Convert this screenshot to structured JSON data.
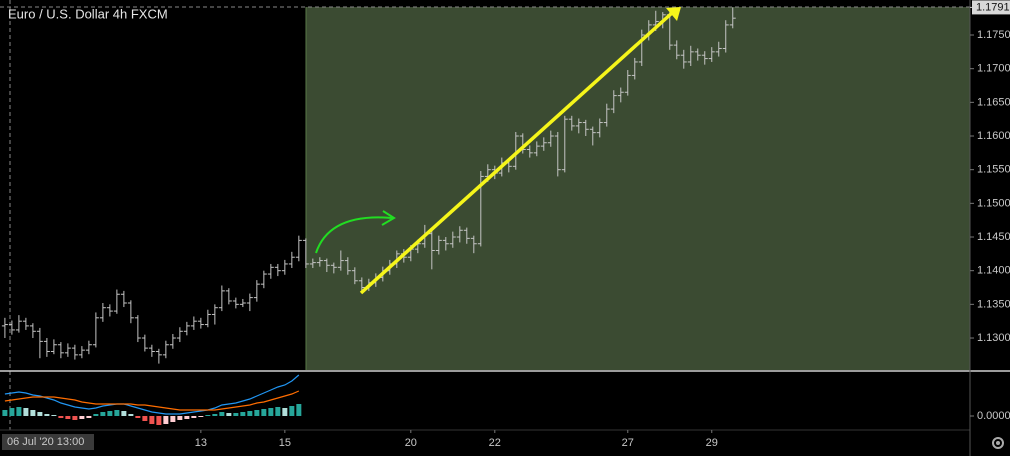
{
  "chart_data": [
    {
      "type": "ohlc",
      "title": "Euro / U.S. Dollar  4h  FXCM",
      "color": "#c4c4c4",
      "xlim": [
        -0.7,
        137.9
      ],
      "xticks": [
        {
          "value": 28,
          "label": "13"
        },
        {
          "value": 40,
          "label": "15"
        },
        {
          "value": 58,
          "label": "20"
        },
        {
          "value": 70,
          "label": "22"
        },
        {
          "value": 89,
          "label": "27"
        },
        {
          "value": 101,
          "label": "29"
        }
      ],
      "crosshair_label": "06 Jul '20  13:00",
      "ylim": [
        1.12525,
        1.1802
      ],
      "yticks": [
        {
          "value": 1.13,
          "label": "1.1300"
        },
        {
          "value": 1.135,
          "label": "1.1350"
        },
        {
          "value": 1.14,
          "label": "1.1400"
        },
        {
          "value": 1.145,
          "label": "1.1450"
        },
        {
          "value": 1.15,
          "label": "1.1500"
        },
        {
          "value": 1.155,
          "label": "1.1550"
        },
        {
          "value": 1.16,
          "label": "1.1600"
        },
        {
          "value": 1.165,
          "label": "1.1650"
        },
        {
          "value": 1.17,
          "label": "1.1700"
        },
        {
          "value": 1.175,
          "label": "1.1750"
        }
      ],
      "last_price": {
        "value": 1.1791,
        "label": "1.1791"
      },
      "values": [
        [
          1.1318,
          1.133,
          1.13,
          1.132
        ],
        [
          1.132,
          1.1326,
          1.1305,
          1.1312
        ],
        [
          1.1312,
          1.1334,
          1.1308,
          1.1325
        ],
        [
          1.1325,
          1.133,
          1.1312,
          1.1318
        ],
        [
          1.1318,
          1.1322,
          1.13,
          1.131
        ],
        [
          1.131,
          1.1315,
          1.127,
          1.1295
        ],
        [
          1.1295,
          1.13,
          1.1272,
          1.128
        ],
        [
          1.128,
          1.1298,
          1.1276,
          1.129
        ],
        [
          1.129,
          1.1294,
          1.127,
          1.1278
        ],
        [
          1.1278,
          1.1292,
          1.1272,
          1.1285
        ],
        [
          1.1285,
          1.129,
          1.1268,
          1.1275
        ],
        [
          1.1275,
          1.1288,
          1.127,
          1.1282
        ],
        [
          1.1282,
          1.1296,
          1.1276,
          1.129
        ],
        [
          1.129,
          1.1338,
          1.1286,
          1.133
        ],
        [
          1.133,
          1.1352,
          1.1324,
          1.1345
        ],
        [
          1.1345,
          1.135,
          1.1332,
          1.134
        ],
        [
          1.134,
          1.1372,
          1.1336,
          1.1365
        ],
        [
          1.1365,
          1.137,
          1.1346,
          1.1352
        ],
        [
          1.1352,
          1.1356,
          1.1322,
          1.133
        ],
        [
          1.133,
          1.1334,
          1.1294,
          1.13
        ],
        [
          1.13,
          1.1305,
          1.128,
          1.1285
        ],
        [
          1.1285,
          1.129,
          1.1272,
          1.128
        ],
        [
          1.128,
          1.1284,
          1.1262,
          1.1275
        ],
        [
          1.1275,
          1.1296,
          1.127,
          1.129
        ],
        [
          1.129,
          1.1306,
          1.1284,
          1.13
        ],
        [
          1.13,
          1.1316,
          1.1294,
          1.131
        ],
        [
          1.131,
          1.1324,
          1.1304,
          1.1318
        ],
        [
          1.1318,
          1.1332,
          1.1312,
          1.1325
        ],
        [
          1.1325,
          1.133,
          1.1314,
          1.132
        ],
        [
          1.132,
          1.1342,
          1.1316,
          1.1335
        ],
        [
          1.1335,
          1.135,
          1.132,
          1.1345
        ],
        [
          1.1345,
          1.1378,
          1.134,
          1.137
        ],
        [
          1.137,
          1.1374,
          1.135,
          1.1355
        ],
        [
          1.1355,
          1.136,
          1.1344,
          1.135
        ],
        [
          1.135,
          1.1358,
          1.1346,
          1.1352
        ],
        [
          1.1352,
          1.1366,
          1.134,
          1.136
        ],
        [
          1.136,
          1.1386,
          1.1354,
          1.138
        ],
        [
          1.138,
          1.14,
          1.1374,
          1.1395
        ],
        [
          1.1395,
          1.141,
          1.1388,
          1.1405
        ],
        [
          1.1405,
          1.141,
          1.1392,
          1.14
        ],
        [
          1.14,
          1.1416,
          1.1394,
          1.141
        ],
        [
          1.141,
          1.1428,
          1.1404,
          1.142
        ],
        [
          1.142,
          1.1452,
          1.1414,
          1.1445
        ],
        [
          1.1445,
          1.1448,
          1.1404,
          1.141
        ],
        [
          1.141,
          1.1418,
          1.1404,
          1.1412
        ],
        [
          1.1412,
          1.142,
          1.1406,
          1.1415
        ],
        [
          1.1415,
          1.1418,
          1.1398,
          1.1408
        ],
        [
          1.1408,
          1.1412,
          1.1396,
          1.1405
        ],
        [
          1.1405,
          1.143,
          1.14,
          1.1415
        ],
        [
          1.1415,
          1.142,
          1.1394,
          1.14
        ],
        [
          1.14,
          1.1405,
          1.138,
          1.1385
        ],
        [
          1.1385,
          1.139,
          1.1368,
          1.1375
        ],
        [
          1.1375,
          1.1388,
          1.137,
          1.1382
        ],
        [
          1.1382,
          1.1396,
          1.1376,
          1.139
        ],
        [
          1.139,
          1.1406,
          1.1384,
          1.14
        ],
        [
          1.14,
          1.1416,
          1.1394,
          1.141
        ],
        [
          1.141,
          1.143,
          1.1404,
          1.1425
        ],
        [
          1.1425,
          1.1432,
          1.1412,
          1.142
        ],
        [
          1.142,
          1.1438,
          1.1414,
          1.1432
        ],
        [
          1.1432,
          1.1446,
          1.1426,
          1.144
        ],
        [
          1.144,
          1.1468,
          1.1434,
          1.1455
        ],
        [
          1.1455,
          1.146,
          1.1402,
          1.143
        ],
        [
          1.143,
          1.1452,
          1.1424,
          1.1445
        ],
        [
          1.1445,
          1.145,
          1.143,
          1.144
        ],
        [
          1.144,
          1.1458,
          1.1434,
          1.145
        ],
        [
          1.145,
          1.1466,
          1.1442,
          1.146
        ],
        [
          1.146,
          1.1464,
          1.144,
          1.1448
        ],
        [
          1.1448,
          1.1452,
          1.1426,
          1.144
        ],
        [
          1.144,
          1.1548,
          1.1436,
          1.154
        ],
        [
          1.154,
          1.1558,
          1.1532,
          1.155
        ],
        [
          1.155,
          1.1556,
          1.1536,
          1.1545
        ],
        [
          1.1545,
          1.1568,
          1.154,
          1.156
        ],
        [
          1.156,
          1.1566,
          1.1546,
          1.1555
        ],
        [
          1.1555,
          1.1606,
          1.155,
          1.16
        ],
        [
          1.16,
          1.1604,
          1.1574,
          1.158
        ],
        [
          1.158,
          1.1586,
          1.1568,
          1.1575
        ],
        [
          1.1575,
          1.1592,
          1.157,
          1.1585
        ],
        [
          1.1585,
          1.1598,
          1.1578,
          1.159
        ],
        [
          1.159,
          1.1608,
          1.1584,
          1.16
        ],
        [
          1.16,
          1.1606,
          1.154,
          1.155
        ],
        [
          1.155,
          1.163,
          1.1546,
          1.1625
        ],
        [
          1.1625,
          1.163,
          1.1608,
          1.1615
        ],
        [
          1.1615,
          1.1626,
          1.1604,
          1.162
        ],
        [
          1.162,
          1.1624,
          1.16,
          1.161
        ],
        [
          1.161,
          1.1614,
          1.1586,
          1.1605
        ],
        [
          1.1605,
          1.1626,
          1.1598,
          1.162
        ],
        [
          1.162,
          1.1648,
          1.1614,
          1.164
        ],
        [
          1.164,
          1.1668,
          1.1634,
          1.166
        ],
        [
          1.166,
          1.1672,
          1.165,
          1.1665
        ],
        [
          1.1665,
          1.1698,
          1.166,
          1.169
        ],
        [
          1.169,
          1.1716,
          1.1684,
          1.171
        ],
        [
          1.171,
          1.1758,
          1.1704,
          1.175
        ],
        [
          1.175,
          1.1772,
          1.1742,
          1.1765
        ],
        [
          1.1765,
          1.1786,
          1.1756,
          1.177
        ],
        [
          1.177,
          1.1784,
          1.176,
          1.178
        ],
        [
          1.178,
          1.1784,
          1.1728,
          1.1735
        ],
        [
          1.1735,
          1.1742,
          1.1714,
          1.172
        ],
        [
          1.172,
          1.1728,
          1.17,
          1.171
        ],
        [
          1.171,
          1.1734,
          1.1704,
          1.1725
        ],
        [
          1.1725,
          1.173,
          1.1712,
          1.172
        ],
        [
          1.172,
          1.1726,
          1.1706,
          1.1715
        ],
        [
          1.1715,
          1.1732,
          1.171,
          1.1725
        ],
        [
          1.1725,
          1.174,
          1.1718,
          1.173
        ],
        [
          1.173,
          1.1772,
          1.1724,
          1.1765
        ],
        [
          1.1765,
          1.1791,
          1.176,
          1.1775
        ]
      ]
    },
    {
      "type": "macd",
      "ylim": [
        -0.0014,
        0.0044
      ],
      "yticks": [
        {
          "value": 0,
          "label": "0.0000"
        }
      ],
      "histogram_colors": [
        "#26a69a",
        "#b2dfdb",
        "#ef5350",
        "#ffcdd2"
      ],
      "histogram": [
        0.0006,
        0.0008,
        0.0009,
        0.0008,
        0.0006,
        0.0004,
        0.0002,
        0.0001,
        -0.0002,
        -0.0003,
        -0.0004,
        -0.0003,
        -0.0002,
        0.0002,
        0.0004,
        0.0005,
        0.0006,
        0.0005,
        0.0002,
        -0.0002,
        -0.0005,
        -0.0008,
        -0.0009,
        -0.0008,
        -0.0006,
        -0.0004,
        -0.0003,
        -0.0002,
        -0.0001,
        0.0001,
        0.0002,
        0.0004,
        0.0003,
        0.0003,
        0.0004,
        0.0005,
        0.0006,
        0.0007,
        0.0008,
        0.0009,
        0.0008,
        0.001,
        0.0012
      ],
      "lines": [
        {
          "color": "#2196f3",
          "values": [
            0.0022,
            0.0023,
            0.0024,
            0.0023,
            0.0021,
            0.002,
            0.0018,
            0.0016,
            0.0013,
            0.0011,
            0.0009,
            0.0008,
            0.0007,
            0.0008,
            0.001,
            0.0011,
            0.0012,
            0.0012,
            0.001,
            0.0008,
            0.0006,
            0.0004,
            0.0003,
            0.0002,
            0.0002,
            0.0002,
            0.0003,
            0.0004,
            0.0005,
            0.0006,
            0.0008,
            0.0011,
            0.0012,
            0.0013,
            0.0015,
            0.0017,
            0.002,
            0.0023,
            0.0026,
            0.0029,
            0.0031,
            0.0035,
            0.0041
          ]
        },
        {
          "color": "#ff6d00",
          "values": [
            0.0015,
            0.0016,
            0.0017,
            0.0018,
            0.0019,
            0.0019,
            0.0019,
            0.0019,
            0.0018,
            0.0017,
            0.0016,
            0.0014,
            0.0013,
            0.0012,
            0.0012,
            0.0012,
            0.0012,
            0.0012,
            0.0012,
            0.0011,
            0.0011,
            0.001,
            0.0009,
            0.0008,
            0.0007,
            0.0006,
            0.0006,
            0.0006,
            0.0006,
            0.0006,
            0.0006,
            0.0007,
            0.0008,
            0.0009,
            0.001,
            0.0011,
            0.0013,
            0.0014,
            0.0016,
            0.0018,
            0.002,
            0.0022,
            0.0025
          ]
        }
      ]
    }
  ]
}
